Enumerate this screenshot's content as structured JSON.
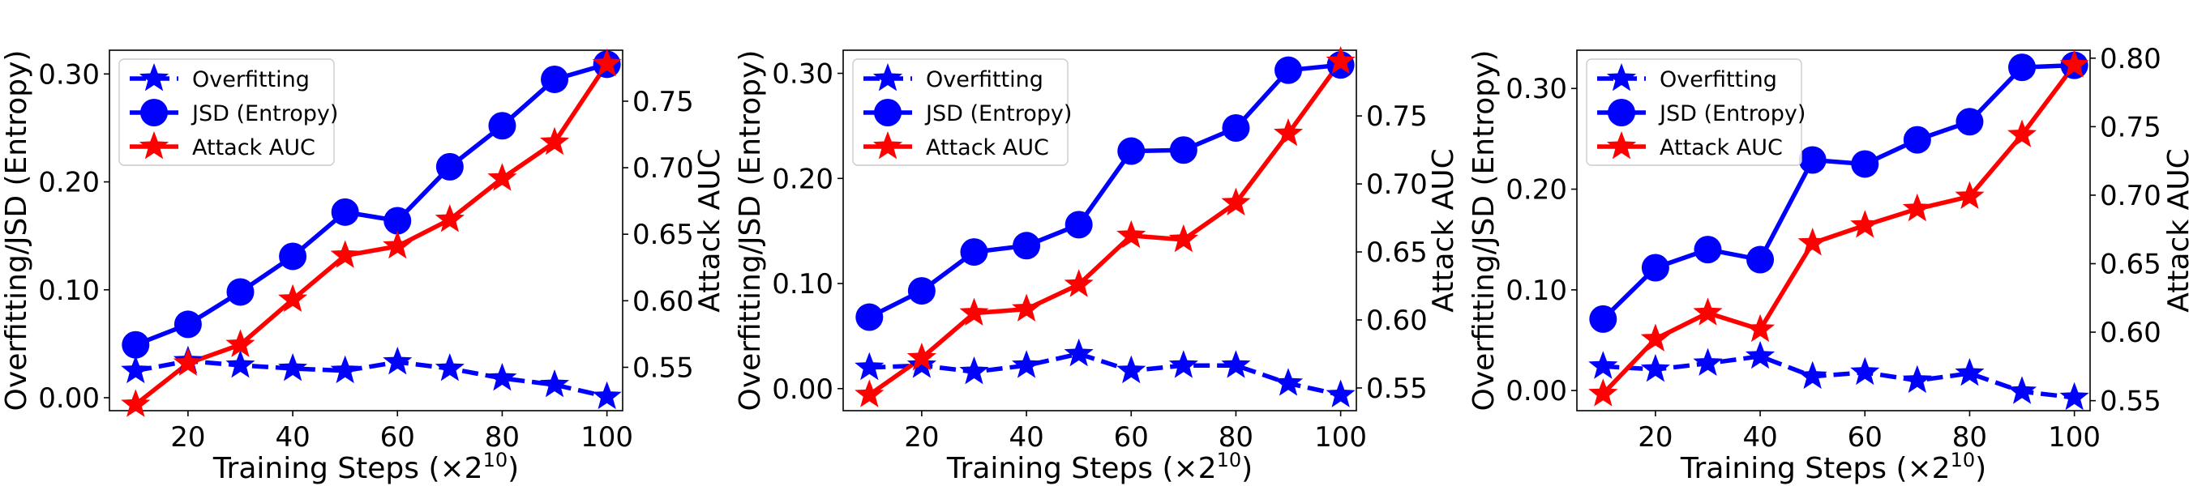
{
  "chart_data": [
    {
      "type": "line",
      "xlabel": "Training Steps (×2",
      "xlabel_sup": "10",
      "xlabel_end": ")",
      "ylabel_left": "Overfitting/JSD (Entropy)",
      "ylabel_right": "Attack AUC",
      "x": [
        10,
        20,
        30,
        40,
        50,
        60,
        70,
        80,
        90,
        100
      ],
      "xlim": [
        5,
        103
      ],
      "xticks": [
        20,
        40,
        60,
        80,
        100
      ],
      "ylim_left": [
        -0.012,
        0.322
      ],
      "yticks_left": [
        "0.00",
        "0.10",
        "0.20",
        "0.30"
      ],
      "ylim_right": [
        0.5174,
        0.7883
      ],
      "yticks_right": [
        "0.55",
        "0.60",
        "0.65",
        "0.70",
        "0.75"
      ],
      "legend_position": "upper-left",
      "grid": false,
      "series": [
        {
          "name": "Overfitting",
          "axis": "left",
          "color": "#0000ff",
          "style": "dashed",
          "marker": "star",
          "values": [
            0.025,
            0.034,
            0.03,
            0.027,
            0.025,
            0.033,
            0.027,
            0.018,
            0.012,
            0.001
          ]
        },
        {
          "name": "JSD (Entropy)",
          "axis": "left",
          "color": "#0000ff",
          "style": "solid",
          "marker": "circle",
          "values": [
            0.049,
            0.068,
            0.098,
            0.131,
            0.172,
            0.164,
            0.214,
            0.252,
            0.295,
            0.309
          ]
        },
        {
          "name": "Attack AUC",
          "axis": "right",
          "color": "#ff0000",
          "style": "solid",
          "marker": "star",
          "values": [
            0.522,
            0.553,
            0.567,
            0.601,
            0.634,
            0.641,
            0.661,
            0.692,
            0.719,
            0.778
          ]
        }
      ]
    },
    {
      "type": "line",
      "xlabel": "Training Steps (×2",
      "xlabel_sup": "10",
      "xlabel_end": ")",
      "ylabel_left": "Overfitting/JSD (Entropy)",
      "ylabel_right": "Attack AUC",
      "x": [
        10,
        20,
        30,
        40,
        50,
        60,
        70,
        80,
        90,
        100
      ],
      "xlim": [
        5,
        103
      ],
      "xticks": [
        20,
        40,
        60,
        80,
        100
      ],
      "ylim_left": [
        -0.021,
        0.322
      ],
      "yticks_left": [
        "0.00",
        "0.10",
        "0.20",
        "0.30"
      ],
      "ylim_right": [
        0.5333,
        0.7983
      ],
      "yticks_right": [
        "0.55",
        "0.60",
        "0.65",
        "0.70",
        "0.75"
      ],
      "legend_position": "upper-left",
      "grid": false,
      "series": [
        {
          "name": "Overfitting",
          "axis": "left",
          "color": "#0000ff",
          "style": "dashed",
          "marker": "star",
          "values": [
            0.02,
            0.022,
            0.016,
            0.022,
            0.033,
            0.017,
            0.022,
            0.022,
            0.005,
            -0.006
          ]
        },
        {
          "name": "JSD (Entropy)",
          "axis": "left",
          "color": "#0000ff",
          "style": "solid",
          "marker": "circle",
          "values": [
            0.068,
            0.093,
            0.13,
            0.136,
            0.156,
            0.226,
            0.227,
            0.248,
            0.303,
            0.308
          ]
        },
        {
          "name": "Attack AUC",
          "axis": "right",
          "color": "#ff0000",
          "style": "solid",
          "marker": "star",
          "values": [
            0.545,
            0.572,
            0.605,
            0.608,
            0.626,
            0.662,
            0.659,
            0.686,
            0.737,
            0.79
          ]
        }
      ]
    },
    {
      "type": "line",
      "xlabel": "Training Steps (×2",
      "xlabel_sup": "10",
      "xlabel_end": ")",
      "ylabel_left": "Overfitting/JSD (Entropy)",
      "ylabel_right": "Attack AUC",
      "x": [
        10,
        20,
        30,
        40,
        50,
        60,
        70,
        80,
        90,
        100
      ],
      "xlim": [
        5,
        103
      ],
      "xticks": [
        20,
        40,
        60,
        80,
        100
      ],
      "ylim_left": [
        -0.02,
        0.338
      ],
      "yticks_left": [
        "0.00",
        "0.10",
        "0.20",
        "0.30"
      ],
      "ylim_right": [
        0.5427,
        0.8058
      ],
      "yticks_right": [
        "0.55",
        "0.60",
        "0.65",
        "0.70",
        "0.75",
        "0.80"
      ],
      "legend_position": "upper-left",
      "grid": false,
      "series": [
        {
          "name": "Overfitting",
          "axis": "left",
          "color": "#0000ff",
          "style": "dashed",
          "marker": "star",
          "values": [
            0.024,
            0.021,
            0.027,
            0.034,
            0.014,
            0.018,
            0.01,
            0.017,
            -0.001,
            -0.007
          ]
        },
        {
          "name": "JSD (Entropy)",
          "axis": "left",
          "color": "#0000ff",
          "style": "solid",
          "marker": "circle",
          "values": [
            0.071,
            0.122,
            0.14,
            0.13,
            0.229,
            0.225,
            0.249,
            0.267,
            0.321,
            0.323
          ]
        },
        {
          "name": "Attack AUC",
          "axis": "right",
          "color": "#ff0000",
          "style": "solid",
          "marker": "star",
          "values": [
            0.555,
            0.595,
            0.614,
            0.602,
            0.665,
            0.678,
            0.69,
            0.699,
            0.744,
            0.795
          ]
        }
      ]
    }
  ]
}
